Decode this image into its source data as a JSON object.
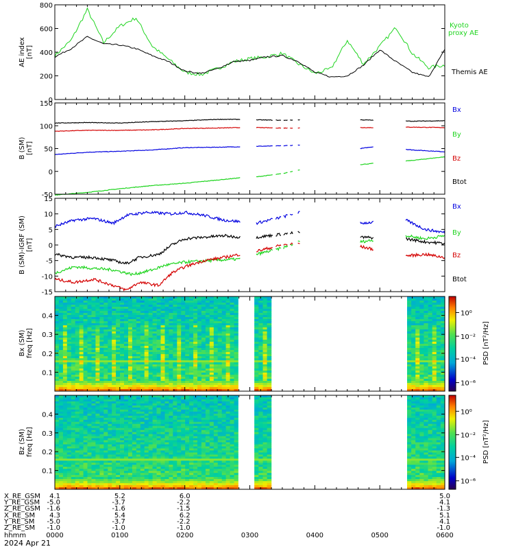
{
  "chart_data": [
    {
      "type": "line",
      "panel": "ae",
      "ylabel": "AE index",
      "yunit": "[nT]",
      "ylim": [
        0,
        800
      ],
      "yticks": [
        "0",
        "200",
        "400",
        "600",
        "800"
      ],
      "x": [
        0.0,
        0.25,
        0.5,
        0.75,
        1.0,
        1.25,
        1.5,
        1.75,
        2.0,
        2.25,
        2.5,
        2.75,
        3.0,
        3.25,
        3.5,
        3.75,
        4.0,
        4.25,
        4.5,
        4.75,
        5.0,
        5.25,
        5.5,
        5.75,
        6.0
      ],
      "series": [
        {
          "name": "Kyoto proxy AE",
          "color": "#1ed41e",
          "values": [
            370,
            500,
            760,
            480,
            620,
            690,
            450,
            340,
            230,
            210,
            260,
            320,
            345,
            360,
            390,
            300,
            220,
            260,
            500,
            300,
            450,
            610,
            390,
            270,
            290
          ]
        },
        {
          "name": "Themis AE",
          "color": "#000000",
          "values": [
            360,
            430,
            530,
            470,
            460,
            430,
            370,
            320,
            240,
            220,
            260,
            320,
            330,
            360,
            370,
            320,
            230,
            190,
            200,
            290,
            420,
            320,
            230,
            190,
            420
          ]
        }
      ]
    },
    {
      "type": "line",
      "panel": "b_sm",
      "ylabel": "B (SM)",
      "yunit": "[nT]",
      "ylim": [
        -50,
        150
      ],
      "yticks": [
        "-50",
        "0",
        "50",
        "100",
        "150"
      ],
      "series": [
        {
          "name": "Bx",
          "color": "#0000e0",
          "values": [
            [
              0,
              37
            ],
            [
              0.5,
              42
            ],
            [
              1.0,
              44
            ],
            [
              1.5,
              47
            ],
            [
              2.0,
              52
            ],
            [
              2.5,
              53
            ],
            [
              2.85,
              54
            ],
            [
              3.1,
              55
            ],
            [
              3.5,
              56
            ],
            [
              3.75,
              58
            ],
            [
              4.7,
              50
            ],
            [
              4.95,
              55
            ],
            [
              5.5,
              47
            ],
            [
              6.0,
              43
            ]
          ]
        },
        {
          "name": "By",
          "color": "#1ed41e",
          "values": [
            [
              0,
              -52
            ],
            [
              0.5,
              -46
            ],
            [
              1.0,
              -38
            ],
            [
              1.5,
              -31
            ],
            [
              2.0,
              -26
            ],
            [
              2.5,
              -19
            ],
            [
              2.85,
              -14
            ],
            [
              3.1,
              -12
            ],
            [
              3.5,
              -5
            ],
            [
              3.75,
              3
            ],
            [
              4.7,
              15
            ],
            [
              4.95,
              18
            ],
            [
              5.5,
              24
            ],
            [
              6.0,
              32
            ]
          ]
        },
        {
          "name": "Bz",
          "color": "#d40000",
          "values": [
            [
              0,
              88
            ],
            [
              0.5,
              90
            ],
            [
              1.0,
              90
            ],
            [
              1.5,
              91
            ],
            [
              2.0,
              94
            ],
            [
              2.5,
              95
            ],
            [
              2.85,
              96
            ],
            [
              3.1,
              96
            ],
            [
              3.5,
              95
            ],
            [
              4.7,
              96
            ],
            [
              4.95,
              96
            ],
            [
              5.5,
              97
            ],
            [
              6.0,
              96
            ]
          ]
        },
        {
          "name": "Btot",
          "color": "#000000",
          "values": [
            [
              0,
              106
            ],
            [
              0.5,
              107
            ],
            [
              1.0,
              106
            ],
            [
              1.5,
              109
            ],
            [
              2.0,
              111
            ],
            [
              2.5,
              114
            ],
            [
              2.85,
              114
            ],
            [
              3.1,
              113
            ],
            [
              3.5,
              112
            ],
            [
              3.75,
              113
            ],
            [
              4.7,
              113
            ],
            [
              4.95,
              112
            ],
            [
              5.5,
              110
            ],
            [
              6.0,
              111
            ]
          ]
        }
      ]
    },
    {
      "type": "line",
      "panel": "b_igrf",
      "ylabel": "B (SM)-IGRF (SM)",
      "yunit": "[nT]",
      "ylim": [
        -15,
        15
      ],
      "yticks": [
        "-15",
        "-10",
        "-5",
        "0",
        "5",
        "10",
        "15"
      ],
      "series": [
        {
          "name": "Bx",
          "color": "#0000e0",
          "values": [
            [
              0,
              6
            ],
            [
              0.3,
              8
            ],
            [
              0.6,
              8.5
            ],
            [
              0.9,
              7
            ],
            [
              1.1,
              9.5
            ],
            [
              1.4,
              10.5
            ],
            [
              1.8,
              10
            ],
            [
              2.0,
              10.5
            ],
            [
              2.3,
              9.5
            ],
            [
              2.6,
              8
            ],
            [
              2.85,
              7.5
            ],
            [
              3.1,
              7
            ],
            [
              3.5,
              9
            ],
            [
              3.75,
              10.5
            ],
            [
              4.5,
              7.5
            ],
            [
              4.7,
              7
            ],
            [
              5.4,
              8
            ],
            [
              5.7,
              5
            ],
            [
              6.0,
              4
            ]
          ]
        },
        {
          "name": "By",
          "color": "#1ed41e",
          "values": [
            [
              0,
              -9
            ],
            [
              0.3,
              -7
            ],
            [
              0.6,
              -7.5
            ],
            [
              0.9,
              -8
            ],
            [
              1.2,
              -9.5
            ],
            [
              1.5,
              -8
            ],
            [
              1.7,
              -6.5
            ],
            [
              2.0,
              -5.5
            ],
            [
              2.4,
              -5
            ],
            [
              2.85,
              -4.5
            ],
            [
              3.1,
              -3
            ],
            [
              3.5,
              -1
            ],
            [
              3.75,
              1
            ],
            [
              4.5,
              2
            ],
            [
              4.7,
              1
            ],
            [
              5.4,
              3
            ],
            [
              5.7,
              2
            ],
            [
              6.0,
              3
            ]
          ]
        },
        {
          "name": "Bz",
          "color": "#d40000",
          "values": [
            [
              0,
              -11
            ],
            [
              0.3,
              -12
            ],
            [
              0.6,
              -11
            ],
            [
              0.9,
              -13
            ],
            [
              1.1,
              -14.5
            ],
            [
              1.3,
              -12
            ],
            [
              1.6,
              -13
            ],
            [
              1.8,
              -9
            ],
            [
              2.0,
              -7
            ],
            [
              2.3,
              -5
            ],
            [
              2.6,
              -4
            ],
            [
              2.85,
              -3
            ],
            [
              3.1,
              -2
            ],
            [
              3.5,
              0
            ],
            [
              3.75,
              0.5
            ],
            [
              4.5,
              -1
            ],
            [
              4.7,
              -0.5
            ],
            [
              5.4,
              -3.5
            ],
            [
              5.7,
              -3
            ],
            [
              6.0,
              -4
            ]
          ]
        },
        {
          "name": "Btot",
          "color": "#000000",
          "values": [
            [
              0,
              -3
            ],
            [
              0.3,
              -4
            ],
            [
              0.6,
              -4
            ],
            [
              0.9,
              -5
            ],
            [
              1.1,
              -6
            ],
            [
              1.3,
              -4
            ],
            [
              1.6,
              -3
            ],
            [
              1.8,
              0
            ],
            [
              2.0,
              2
            ],
            [
              2.3,
              2.5
            ],
            [
              2.6,
              3
            ],
            [
              2.85,
              2.5
            ],
            [
              3.1,
              2.5
            ],
            [
              3.5,
              3.5
            ],
            [
              3.75,
              4
            ],
            [
              4.5,
              3
            ],
            [
              4.7,
              2.5
            ],
            [
              5.4,
              2
            ],
            [
              5.7,
              1
            ],
            [
              6.0,
              0.5
            ]
          ]
        }
      ]
    },
    {
      "type": "heatmap",
      "panel": "bx_spec",
      "ylabel": "Bx (SM)",
      "ylabel2": "freq  [Hz]",
      "ylim": [
        0,
        0.5
      ],
      "yticks": [
        "0.1",
        "0.2",
        "0.3",
        "0.4"
      ],
      "data_intervals": [
        [
          0,
          2.82
        ],
        [
          3.07,
          3.33
        ],
        [
          5.42,
          6.0
        ]
      ],
      "colorbar_label": "PSD [nT²/Hz]",
      "colorbar_ticks": [
        "10⁰",
        "10⁻²",
        "10⁻⁴",
        "10⁻⁶"
      ]
    },
    {
      "type": "heatmap",
      "panel": "bz_spec",
      "ylabel": "Bz (SM)",
      "ylabel2": "freq  [Hz]",
      "ylim": [
        0,
        0.5
      ],
      "yticks": [
        "0.1",
        "0.2",
        "0.3",
        "0.4"
      ],
      "data_intervals": [
        [
          0,
          2.82
        ],
        [
          3.07,
          3.33
        ],
        [
          5.42,
          6.0
        ]
      ],
      "colorbar_label": "PSD [nT²/Hz]",
      "colorbar_ticks": [
        "10⁰",
        "10⁻²",
        "10⁻⁴",
        "10⁻⁶"
      ]
    }
  ],
  "legends": {
    "ae": [
      "Kyoto",
      "proxy AE",
      "Themis AE"
    ],
    "b": [
      "Bx",
      "By",
      "Bz",
      "Btot"
    ]
  },
  "xaxis": {
    "range_hours": [
      0,
      6
    ],
    "columns": [
      {
        "x": 0,
        "values": [
          "4.1",
          "-5.0",
          "-1.6",
          "4.3",
          "-5.0",
          "-1.0",
          "0000"
        ]
      },
      {
        "x": 1,
        "values": [
          "5.2",
          "-3.7",
          "-1.6",
          "5.4",
          "-3.7",
          "-1.0",
          "0100"
        ]
      },
      {
        "x": 2,
        "values": [
          "6.0",
          "-2.2",
          "-1.5",
          "6.2",
          "-2.2",
          "-1.0",
          "0200"
        ]
      },
      {
        "x": 3,
        "values": [
          "",
          "",
          "",
          "",
          "",
          "",
          "0300"
        ]
      },
      {
        "x": 4,
        "values": [
          "",
          "",
          "",
          "",
          "",
          "",
          "0400"
        ]
      },
      {
        "x": 5,
        "values": [
          "",
          "",
          "",
          "",
          "",
          "",
          "0500"
        ]
      },
      {
        "x": 6,
        "values": [
          "5.0",
          "4.1",
          "-1.3",
          "5.1",
          "4.1",
          "-1.0",
          "0600"
        ]
      }
    ],
    "row_labels": [
      "X_RE_GSM",
      "Y_RE_GSM",
      "Z_RE_GSM",
      "X_RE_SM",
      "Y_RE_SM",
      "Z_RE_SM",
      "hhmm"
    ],
    "date": "2024 Apr 21"
  },
  "colors": {
    "green": "#1ed41e",
    "blue": "#0000e0",
    "red": "#d40000",
    "black": "#000000"
  }
}
